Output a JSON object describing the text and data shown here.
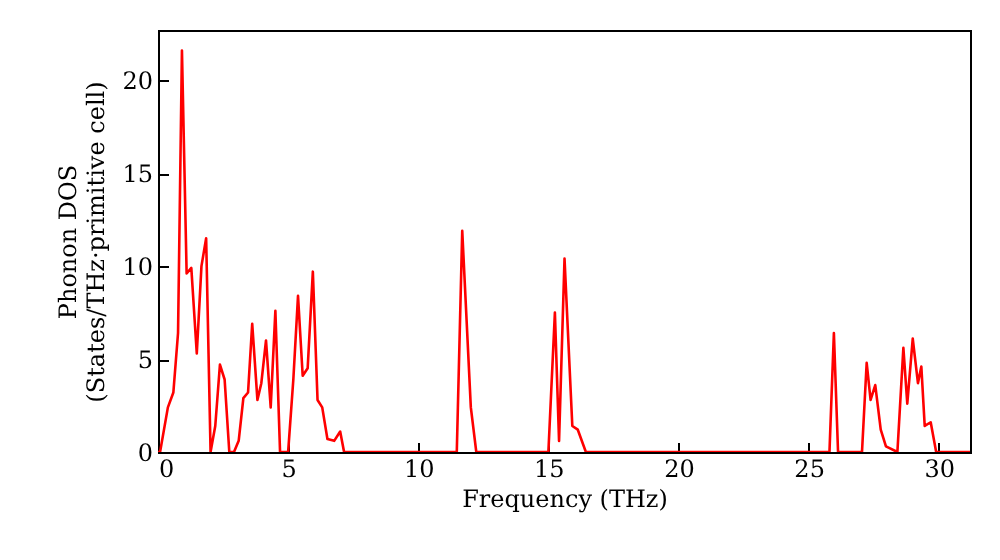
{
  "chart_data": {
    "type": "line",
    "xlabel": "Frequency (THz)",
    "ylabel": "Phonon DOS\n(States/THz·primitive cell)",
    "x": [
      0,
      0.08,
      0.38,
      0.59,
      0.77,
      0.92,
      1.1,
      1.28,
      1.49,
      1.67,
      1.85,
      2.02,
      2.2,
      2.38,
      2.56,
      2.74,
      2.92,
      3.1,
      3.28,
      3.46,
      3.62,
      3.82,
      3.97,
      4.15,
      4.33,
      4.51,
      4.69,
      5.0,
      5.2,
      5.38,
      5.56,
      5.75,
      5.95,
      6.13,
      6.31,
      6.51,
      6.77,
      7.0,
      7.15,
      11.48,
      11.69,
      12.02,
      12.23,
      15.0,
      15.25,
      15.41,
      15.62,
      15.92,
      16.13,
      16.44,
      25.8,
      25.97,
      26.13,
      27.05,
      27.23,
      27.38,
      27.56,
      27.77,
      27.97,
      28.41,
      28.64,
      28.79,
      29.0,
      29.2,
      29.33,
      29.46,
      29.69,
      29.9,
      31.2
    ],
    "series": [
      {
        "color": "#ff0000",
        "values": [
          0,
          0,
          2.4,
          3.2,
          6.4,
          21.6,
          9.6,
          9.9,
          5.3,
          10.0,
          11.5,
          0,
          1.4,
          4.7,
          3.9,
          0,
          0,
          0.6,
          2.9,
          3.2,
          6.9,
          2.8,
          3.7,
          6.0,
          2.4,
          7.6,
          0,
          0,
          3.9,
          8.4,
          4.1,
          4.5,
          9.7,
          2.8,
          2.4,
          0.7,
          0.6,
          1.1,
          0,
          0,
          11.9,
          2.4,
          0,
          0,
          7.5,
          0.6,
          10.4,
          1.4,
          1.2,
          0,
          0,
          6.4,
          0,
          0,
          4.8,
          2.8,
          3.6,
          1.2,
          0.3,
          0,
          5.6,
          2.6,
          6.1,
          3.7,
          4.6,
          1.4,
          1.6,
          0,
          0
        ]
      }
    ],
    "xlim": [
      0,
      31.2
    ],
    "ylim": [
      0,
      22.7
    ],
    "xticks": [
      0,
      5,
      10,
      15,
      20,
      25,
      30
    ],
    "yticks": [
      0,
      5,
      10,
      15,
      20
    ]
  }
}
